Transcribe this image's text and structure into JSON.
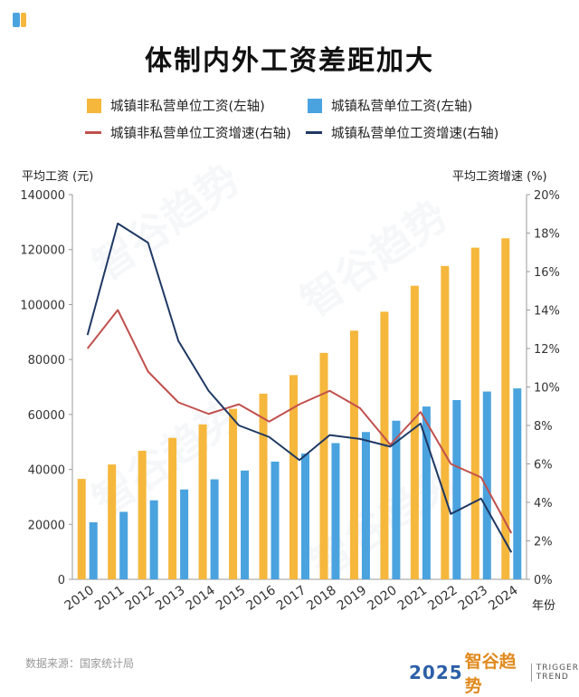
{
  "title": "体制内外工资差距加大",
  "legend": {
    "bar_public": "城镇非私营单位工资(左轴)",
    "bar_private": "城镇私营单位工资(左轴)",
    "line_public": "城镇非私营单位工资增速(右轴)",
    "line_private": "城镇私营单位工资增速(右轴)"
  },
  "axes": {
    "left_title": "平均工资 (元)",
    "right_title": "平均工资增速 (%)",
    "x_title": "年份"
  },
  "colors": {
    "bar_public": "#f5b73c",
    "bar_private": "#4aa3df",
    "line_public": "#c0504d",
    "line_private": "#1f3864"
  },
  "source": "数据来源：国家统计局",
  "brand": {
    "year": "2025",
    "name": "智谷趋势",
    "en_line1": "TRIGGER",
    "en_line2": "TREND"
  },
  "watermark": "智谷趋势",
  "chart_data": {
    "type": "bar",
    "categories": [
      "2010",
      "2011",
      "2012",
      "2013",
      "2014",
      "2015",
      "2016",
      "2017",
      "2018",
      "2019",
      "2020",
      "2021",
      "2022",
      "2023",
      "2024"
    ],
    "series": [
      {
        "name": "城镇非私营单位工资(左轴)",
        "type": "bar",
        "axis": "left",
        "values": [
          36539,
          41799,
          46769,
          51483,
          56360,
          62029,
          67569,
          74318,
          82413,
          90501,
          97379,
          106837,
          114029,
          120698,
          124110
        ]
      },
      {
        "name": "城镇私营单位工资(左轴)",
        "type": "bar",
        "axis": "left",
        "values": [
          20759,
          24556,
          28752,
          32706,
          36390,
          39589,
          42833,
          45761,
          49575,
          53604,
          57727,
          62884,
          65237,
          68340,
          69476
        ]
      },
      {
        "name": "城镇非私营单位工资增速(右轴)",
        "type": "line",
        "axis": "right",
        "values": [
          12.0,
          14.0,
          10.8,
          9.2,
          8.6,
          9.1,
          8.2,
          9.1,
          9.8,
          8.9,
          7.0,
          8.7,
          6.0,
          5.3,
          2.4
        ]
      },
      {
        "name": "城镇私营单位工资增速(右轴)",
        "type": "line",
        "axis": "right",
        "values": [
          12.7,
          18.5,
          17.5,
          12.4,
          9.8,
          8.0,
          7.4,
          6.2,
          7.5,
          7.3,
          6.9,
          8.1,
          3.4,
          4.2,
          1.4
        ]
      }
    ],
    "left_ticks": [
      "0",
      "20000",
      "40000",
      "60000",
      "80000",
      "100000",
      "120000",
      "140000"
    ],
    "right_ticks": [
      "0%",
      "2%",
      "4%",
      "6%",
      "8%",
      "10%",
      "12%",
      "14%",
      "16%",
      "18%",
      "20%"
    ],
    "ylim_left": [
      0,
      140000
    ],
    "ylim_right": [
      0,
      20
    ],
    "grid": false,
    "legend_placement": "top"
  }
}
